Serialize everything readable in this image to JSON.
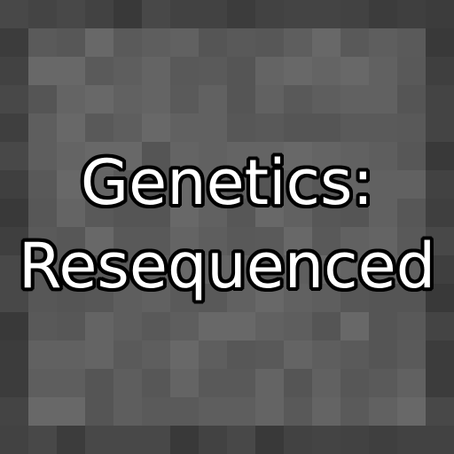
{
  "title": {
    "line1": "Genetics:",
    "line2": "Resequenced"
  },
  "colors": {
    "background": "#5b5b5b",
    "border": "#3f3f3f",
    "text": "#ffffff",
    "outline": "#000000"
  }
}
